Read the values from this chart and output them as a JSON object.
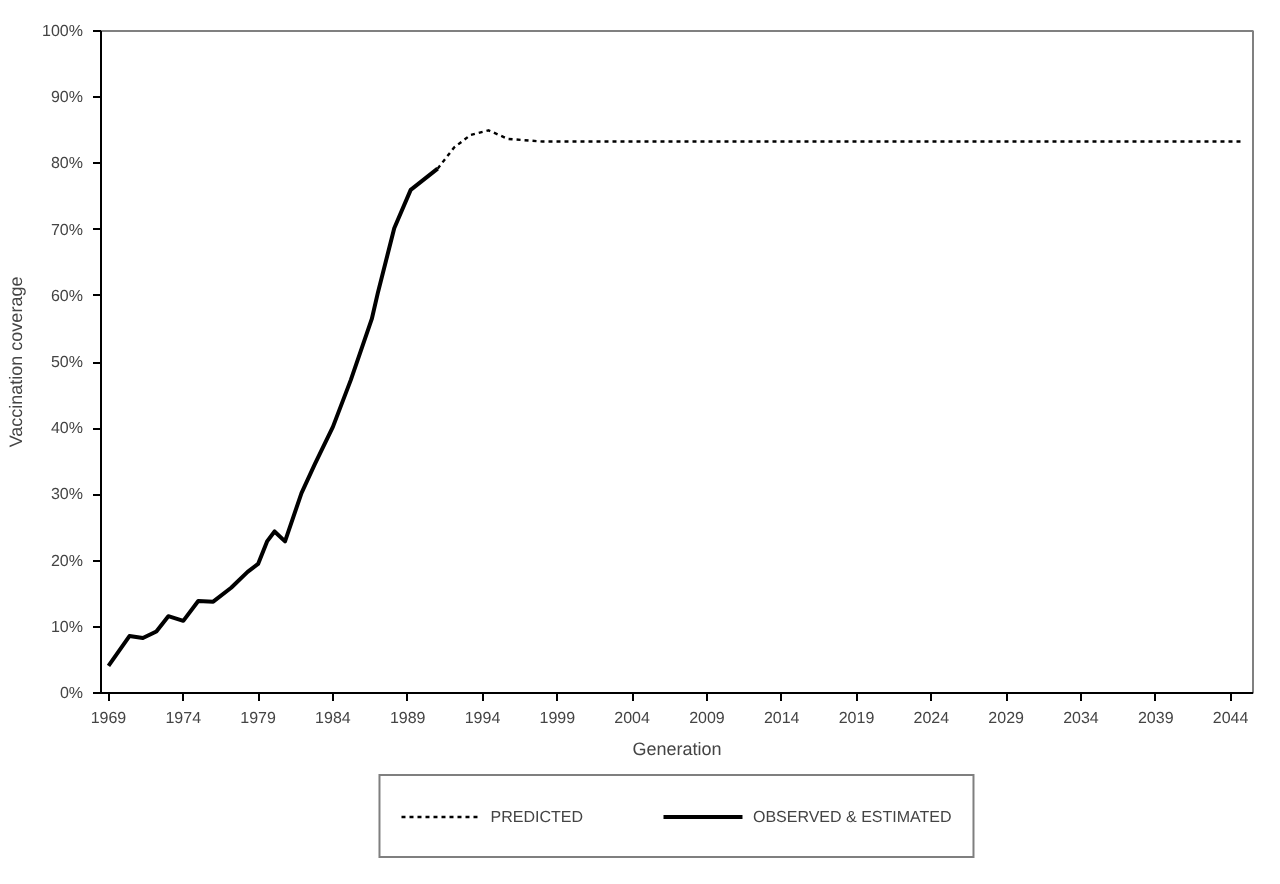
{
  "chart_data": {
    "type": "line",
    "xlabel": "Generation",
    "ylabel": "Vaccination coverage",
    "xlim": [
      1968.5,
      2045.5
    ],
    "xticks": [
      1969,
      1974,
      1979,
      1984,
      1989,
      1994,
      1999,
      2004,
      2009,
      2014,
      2019,
      2024,
      2029,
      2034,
      2039,
      2044
    ],
    "ylim": [
      0,
      100
    ],
    "yticks": [
      {
        "value": 0,
        "label": "0%"
      },
      {
        "value": 10,
        "label": "10%"
      },
      {
        "value": 20,
        "label": "20%"
      },
      {
        "value": 30,
        "label": "30%"
      },
      {
        "value": 40,
        "label": "40%"
      },
      {
        "value": 50,
        "label": "50%"
      },
      {
        "value": 60,
        "label": "60%"
      },
      {
        "value": 70,
        "label": "70%"
      },
      {
        "value": 80,
        "label": "80%"
      },
      {
        "value": 90,
        "label": "90%"
      },
      {
        "value": 100,
        "label": "100%"
      }
    ],
    "grid": false,
    "legend": "bottom",
    "series": [
      {
        "name": "PREDICTED",
        "color": "#000000",
        "line_style": "dotted",
        "x": [
          1991.0,
          1992.1,
          1993.2,
          1994.4,
          1995.7,
          1998,
          2005,
          2015,
          2025,
          2035,
          2044.7
        ],
        "values": [
          79.2,
          82.4,
          84.3,
          85.0,
          83.7,
          83.3,
          83.3,
          83.3,
          83.3,
          83.3,
          83.3
        ]
      },
      {
        "name": "OBSERVED & ESTIMATED",
        "color": "#000000",
        "line_style": "solid",
        "x": [
          1969.0,
          1970.4,
          1971.3,
          1972.2,
          1973.0,
          1974.0,
          1975.0,
          1976.0,
          1977.2,
          1978.3,
          1979.0,
          1979.6,
          1980.1,
          1980.8,
          1981.9,
          1982.8,
          1984.0,
          1985.2,
          1986.6,
          1987.0,
          1988.1,
          1989.2,
          1991.0
        ],
        "values": [
          4.1,
          8.6,
          8.3,
          9.3,
          11.6,
          10.9,
          13.9,
          13.8,
          15.9,
          18.3,
          19.5,
          22.9,
          24.4,
          22.9,
          30.2,
          34.6,
          40.2,
          47.3,
          56.5,
          60.4,
          70.2,
          76.0,
          79.2
        ]
      }
    ]
  }
}
